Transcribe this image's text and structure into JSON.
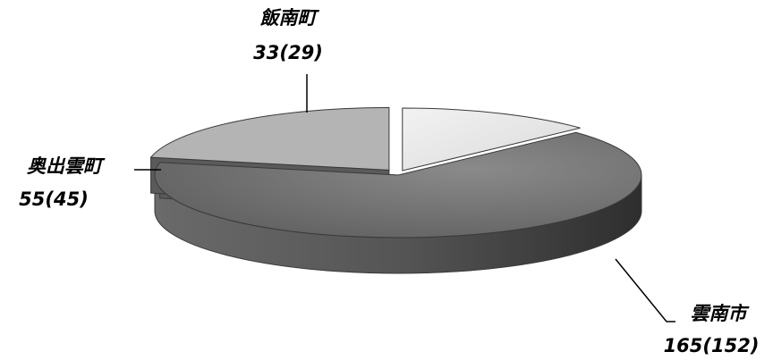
{
  "chart_data": {
    "type": "pie",
    "title": "",
    "slices": [
      {
        "label": "飯南町",
        "value_text": "33(29)",
        "value": 33,
        "prev": 29,
        "color": "#e6e6e6"
      },
      {
        "label": "雲南市",
        "value_text": "165(152)",
        "value": 165,
        "prev": 152,
        "color": "#6e6e6e"
      },
      {
        "label": "奥出雲町",
        "value_text": "55(45)",
        "value": 55,
        "prev": 45,
        "color": "#a6a6a6"
      }
    ]
  }
}
